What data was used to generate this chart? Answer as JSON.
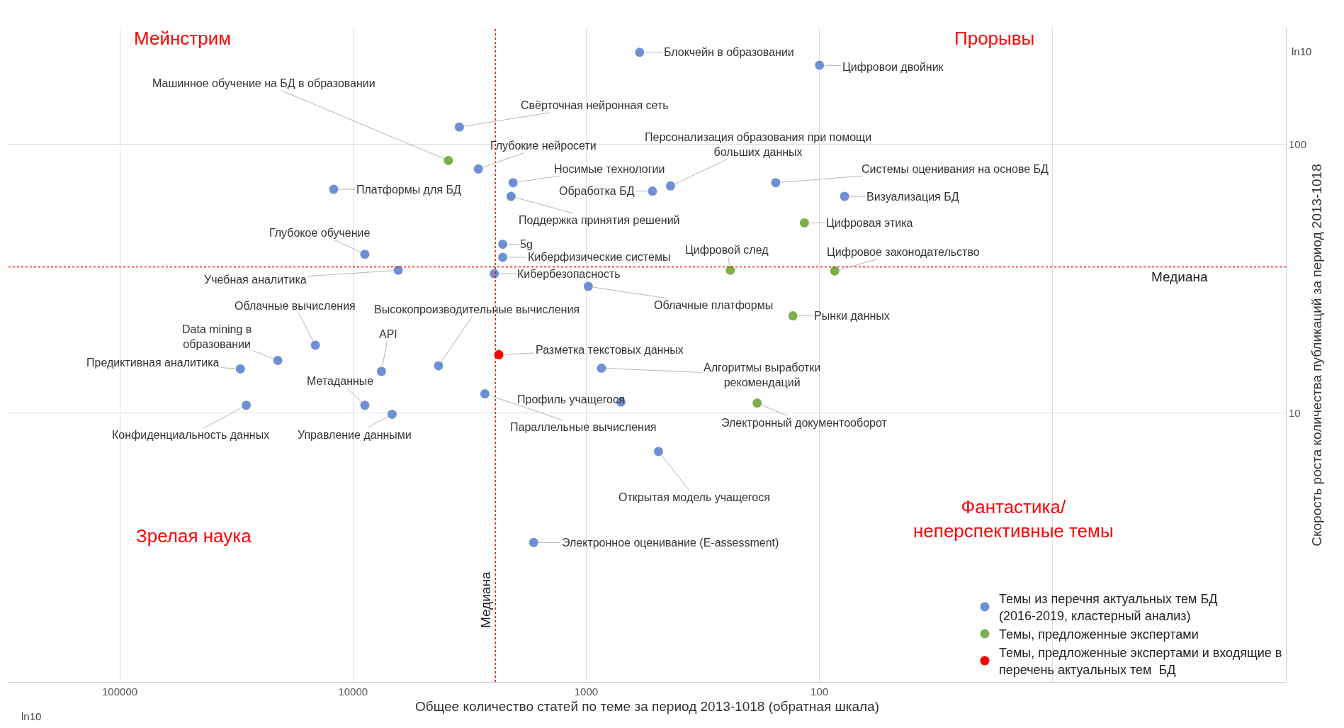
{
  "chart_data": {
    "type": "scatter",
    "xlabel": "Общее количество статей по теме за период 2013-1018 (обратная шкала)",
    "ylabel": "Скорость роста количества публикаций за период 2013-1018",
    "log": "xy",
    "xlim": [
      300000,
      1
    ],
    "ylim": [
      1,
      270
    ],
    "xticks": [
      100000,
      10000,
      1000,
      100,
      {
        "value": 10,
        "label": null
      }
    ],
    "yticks": [
      100,
      10
    ],
    "grid": true,
    "legend": "bottom right",
    "marker": "circle",
    "series": [
      {
        "name": "Темы из перечня актуальных тем БД\n(2016-2019, кластерный анализ)",
        "color": "#6d8fd3",
        "x": [
          590,
          100,
          3500,
          2900,
          2060,
          520,
          435,
          154,
          78,
          12100,
          2100,
          8900,
          2280,
          2280,
          6400,
          2480,
          980,
          14500,
          21000,
          30400,
          7550,
          4300,
          860,
          8900,
          6800,
          28700,
          2720,
          710,
          490,
          1680
        ],
        "values": [
          220,
          197,
          116,
          81,
          72,
          67,
          70,
          72,
          64,
          68,
          64,
          39,
          42.5,
          38,
          34,
          33,
          29.6,
          17.9,
          15.7,
          14.6,
          14.3,
          15,
          14.7,
          10.7,
          9.9,
          10.7,
          11.8,
          11,
          7.2,
          3.3
        ]
      },
      {
        "name": "Темы, предложенные экспертами",
        "color": "#7bb04a",
        "x": [
          3900,
          116,
          241,
          86,
          130,
          185
        ],
        "values": [
          87,
          51,
          34,
          33.8,
          23,
          10.9
        ]
      },
      {
        "name": "Темы, предложенные экспертами и входящие в\nперечень актуальных тем  БД",
        "color": "#ff0000",
        "x": [
          2370
        ],
        "values": [
          16.5
        ]
      }
    ],
    "ref_lines": [
      {
        "axis": "x",
        "value": 2450,
        "label": "Медиана",
        "color": "#ff0000",
        "line_style": "dotted"
      },
      {
        "axis": "y",
        "value": 35,
        "label": "Медиана",
        "color": "#ff0000",
        "line_style": "dotted"
      }
    ],
    "annotations": [
      "Мейнстрим",
      "Прорывы",
      "Зрелая наука",
      "Фантастика/\nнеперспективные темы",
      "ln10",
      "ln10",
      {
        "text": "Блокчейн в образовании",
        "x": 590,
        "y": 220
      },
      {
        "text": "Цифровои двойник",
        "x": 100,
        "y": 197
      },
      {
        "text": "Машинное обучение на БД в образовании",
        "x": 3900,
        "y": 87
      },
      {
        "text": "Свёрточная нейронная сеть",
        "x": 3500,
        "y": 116
      },
      {
        "text": "Глубокие нейросети",
        "x": 2900,
        "y": 81
      },
      {
        "text": "Носимые технологии",
        "x": 2060,
        "y": 72
      },
      {
        "text": "Обработка БД",
        "x": 520,
        "y": 67
      },
      {
        "text": "Персонализация образования при помощи\nбольших данных",
        "x": 435,
        "y": 70
      },
      {
        "text": "Системы оценивания на основе БД",
        "x": 154,
        "y": 72
      },
      {
        "text": "Визуализация БД",
        "x": 78,
        "y": 64
      },
      {
        "text": "Платформы для БД",
        "x": 12100,
        "y": 68
      },
      {
        "text": "Поддержка принятия решений",
        "x": 2100,
        "y": 64
      },
      {
        "text": "Цифровая этика",
        "x": 116,
        "y": 51
      },
      {
        "text": "Глубокое обучение",
        "x": 8900,
        "y": 39
      },
      {
        "text": "5g",
        "x": 2280,
        "y": 42.5
      },
      {
        "text": "Киберфизические системы",
        "x": 2280,
        "y": 38
      },
      {
        "text": "Цифровой след",
        "x": 241,
        "y": 34
      },
      {
        "text": "Цифровое законодательство",
        "x": 86,
        "y": 33.8
      },
      {
        "text": "Учебная аналитика",
        "x": 6400,
        "y": 34
      },
      {
        "text": "Кибербезопасность",
        "x": 2480,
        "y": 33
      },
      {
        "text": "Облачные платформы",
        "x": 980,
        "y": 29.6
      },
      {
        "text": "Рынки данных",
        "x": 130,
        "y": 23
      },
      {
        "text": "Облачные вычисления",
        "x": 14500,
        "y": 17.9
      },
      {
        "text": "Data mining в\nобразовании",
        "x": 21000,
        "y": 15.7
      },
      {
        "text": "Предиктивная аналитика",
        "x": 30400,
        "y": 14.6
      },
      {
        "text": "API",
        "x": 7550,
        "y": 14.3
      },
      {
        "text": "Высокопроизводительные вычисления",
        "x": 4300,
        "y": 15
      },
      {
        "text": "Разметка текстовых данных",
        "x": 2370,
        "y": 16.5
      },
      {
        "text": "Алгоритмы выработки\nрекомендаций",
        "x": 860,
        "y": 14.7
      },
      {
        "text": "Метаданные",
        "x": 8900,
        "y": 10.7
      },
      {
        "text": "Управление данными",
        "x": 6800,
        "y": 9.9
      },
      {
        "text": "Конфиденциальность данных",
        "x": 28700,
        "y": 10.7
      },
      {
        "text": "Параллельные вычисления",
        "x": 2720,
        "y": 11.8
      },
      {
        "text": "Профиль учащегося",
        "x": 710,
        "y": 11
      },
      {
        "text": "Электронный документооборот",
        "x": 185,
        "y": 10.9
      },
      {
        "text": "Открытая модель учащегося",
        "x": 490,
        "y": 7.2
      },
      {
        "text": "Электронное оценивание (E-assessment)",
        "x": 1680,
        "y": 3.3
      }
    ]
  }
}
